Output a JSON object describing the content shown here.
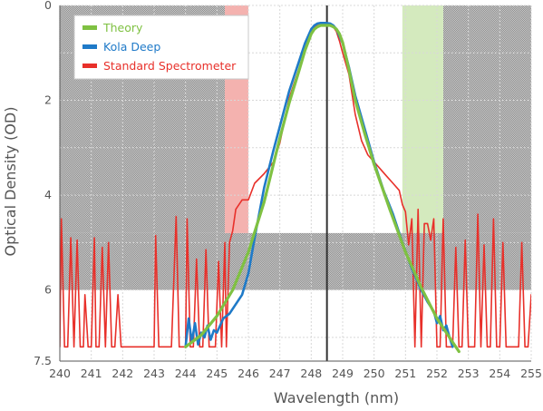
{
  "chart_data": {
    "type": "line",
    "xlabel": "Wavelength (nm)",
    "ylabel": "Optical Density (OD)",
    "xlim": [
      240,
      255
    ],
    "ylim": [
      0,
      7.5
    ],
    "y_inverted": true,
    "grid": true,
    "legend_position": "top-left",
    "x_ticks": [
      "240",
      "241",
      "242",
      "243",
      "244",
      "245",
      "246",
      "247",
      "248",
      "249",
      "250",
      "251",
      "252",
      "253",
      "254",
      "255"
    ],
    "y_ticks": [
      {
        "value": 0,
        "label": "0"
      },
      {
        "value": 2,
        "label": "2"
      },
      {
        "value": 4,
        "label": "4"
      },
      {
        "value": 6,
        "label": "6"
      },
      {
        "value": 7.5,
        "label": "7.5"
      }
    ],
    "vertical_marker": 248.5,
    "colors": {
      "gray_band": "#b4b4b4",
      "red_band": "#f3aaa6",
      "green_band": "#cfe8b7",
      "marker": "#333333",
      "theory": "#7fc142",
      "kola": "#1f7ac8",
      "standard": "#e8302a"
    },
    "shaded_regions": [
      {
        "kind": "gray",
        "x": [
          240,
          245.25
        ],
        "y": [
          0,
          4.8
        ]
      },
      {
        "kind": "gray",
        "x": [
          240,
          255
        ],
        "y": [
          4.8,
          6.0
        ]
      },
      {
        "kind": "gray",
        "x": [
          252.2,
          255
        ],
        "y": [
          0,
          4.8
        ]
      },
      {
        "kind": "red",
        "x": [
          245.25,
          246.0
        ],
        "y": [
          0,
          4.8
        ]
      },
      {
        "kind": "green",
        "x": [
          250.9,
          252.2
        ],
        "y": [
          0,
          4.8
        ]
      }
    ],
    "series": [
      {
        "name": "Theory",
        "color": "#7fc142",
        "x": [
          244.0,
          244.5,
          245.0,
          245.5,
          246.0,
          246.5,
          247.0,
          247.3,
          247.6,
          247.8,
          248.0,
          248.1,
          248.2,
          248.3,
          248.45,
          248.6,
          248.7,
          248.8,
          248.9,
          249.0,
          249.2,
          249.4,
          249.7,
          250.0,
          250.5,
          251.0,
          251.5,
          252.0,
          252.5,
          252.7
        ],
        "y": [
          7.2,
          6.95,
          6.55,
          6.0,
          5.2,
          4.15,
          2.8,
          2.05,
          1.4,
          0.95,
          0.6,
          0.5,
          0.45,
          0.42,
          0.42,
          0.42,
          0.45,
          0.5,
          0.6,
          0.78,
          1.35,
          2.0,
          2.7,
          3.35,
          4.3,
          5.2,
          5.95,
          6.6,
          7.1,
          7.3
        ]
      },
      {
        "name": "Kola Deep",
        "color": "#1f7ac8",
        "x": [
          244.0,
          244.1,
          244.2,
          244.3,
          244.4,
          244.5,
          244.6,
          244.7,
          244.8,
          244.9,
          245.0,
          245.2,
          245.4,
          245.6,
          245.8,
          246.0,
          246.2,
          246.5,
          246.8,
          247.0,
          247.3,
          247.6,
          247.8,
          248.0,
          248.1,
          248.2,
          248.3,
          248.45,
          248.6,
          248.7,
          248.8,
          248.9,
          249.0,
          249.2,
          249.4,
          249.7,
          250.0,
          250.3,
          250.6,
          250.9,
          251.2,
          251.5,
          251.7,
          251.9,
          252.0,
          252.1,
          252.2,
          252.3,
          252.4,
          252.5
        ],
        "y": [
          7.2,
          6.6,
          7.1,
          6.7,
          7.15,
          6.9,
          7.0,
          6.75,
          7.05,
          6.85,
          6.9,
          6.6,
          6.5,
          6.3,
          6.1,
          5.65,
          4.9,
          3.85,
          3.05,
          2.55,
          1.8,
          1.2,
          0.8,
          0.5,
          0.42,
          0.38,
          0.37,
          0.37,
          0.38,
          0.42,
          0.5,
          0.65,
          0.8,
          1.3,
          1.9,
          2.6,
          3.3,
          3.9,
          4.4,
          5.0,
          5.55,
          6.0,
          6.25,
          6.45,
          6.7,
          6.55,
          6.85,
          6.75,
          7.0,
          7.2
        ]
      },
      {
        "name": "Standard Spectrometer",
        "color": "#e8302a",
        "x": [
          240.0,
          240.05,
          240.15,
          240.25,
          240.35,
          240.45,
          240.55,
          240.65,
          240.75,
          240.8,
          240.9,
          241.0,
          241.1,
          241.15,
          241.25,
          241.35,
          241.45,
          241.55,
          241.65,
          241.75,
          241.85,
          241.95,
          242.05,
          242.15,
          243.0,
          243.05,
          243.15,
          243.25,
          243.4,
          243.55,
          243.7,
          243.8,
          243.9,
          244.0,
          244.05,
          244.15,
          244.25,
          244.35,
          244.45,
          244.55,
          244.65,
          244.75,
          244.85,
          244.95,
          245.05,
          245.15,
          245.25,
          245.3,
          245.4,
          245.5,
          245.6,
          245.8,
          246.0,
          246.2,
          246.5,
          246.8,
          247.0,
          247.3,
          247.6,
          247.8,
          248.0,
          248.1,
          248.2,
          248.3,
          248.45,
          248.6,
          248.7,
          248.8,
          248.9,
          249.0,
          249.2,
          249.4,
          249.6,
          249.8,
          250.0,
          250.2,
          250.4,
          250.6,
          250.8,
          250.9,
          251.0,
          251.1,
          251.2,
          251.3,
          251.4,
          251.5,
          251.6,
          251.7,
          251.8,
          251.9,
          252.0,
          252.1,
          252.2,
          252.3,
          252.4,
          252.5,
          252.6,
          252.7,
          252.8,
          252.9,
          253.0,
          253.1,
          253.2,
          253.3,
          253.4,
          253.5,
          253.6,
          253.7,
          253.8,
          253.9,
          254.0,
          254.1,
          254.2,
          254.3,
          254.4,
          254.5,
          254.6,
          254.7,
          254.8,
          254.9,
          255.0
        ],
        "y": [
          7.2,
          4.5,
          7.2,
          7.2,
          4.9,
          7.2,
          4.95,
          7.2,
          7.2,
          6.1,
          7.2,
          7.2,
          4.9,
          7.2,
          7.2,
          5.1,
          7.2,
          5.0,
          7.2,
          7.2,
          6.1,
          7.2,
          7.2,
          7.2,
          7.2,
          4.85,
          7.2,
          7.2,
          7.2,
          7.2,
          4.45,
          7.2,
          7.2,
          7.2,
          4.5,
          7.2,
          7.2,
          5.35,
          7.2,
          7.2,
          5.15,
          7.2,
          7.2,
          7.2,
          5.4,
          7.2,
          5.0,
          7.2,
          5.0,
          4.75,
          4.3,
          4.1,
          4.1,
          3.75,
          3.55,
          3.3,
          2.9,
          1.95,
          1.35,
          0.95,
          0.55,
          0.45,
          0.4,
          0.38,
          0.38,
          0.4,
          0.45,
          0.55,
          0.75,
          1.0,
          1.45,
          2.3,
          2.85,
          3.15,
          3.3,
          3.45,
          3.6,
          3.75,
          3.9,
          4.2,
          4.35,
          5.05,
          4.5,
          7.2,
          4.3,
          7.2,
          4.6,
          4.6,
          4.95,
          4.5,
          7.2,
          7.2,
          4.5,
          7.2,
          7.2,
          7.2,
          5.1,
          7.2,
          7.2,
          4.95,
          7.2,
          7.2,
          7.2,
          4.4,
          7.2,
          5.05,
          7.2,
          7.2,
          4.5,
          7.2,
          7.2,
          5.0,
          7.2,
          7.2,
          7.2,
          7.2,
          7.2,
          5.0,
          7.2,
          7.2,
          6.1
        ]
      }
    ]
  }
}
